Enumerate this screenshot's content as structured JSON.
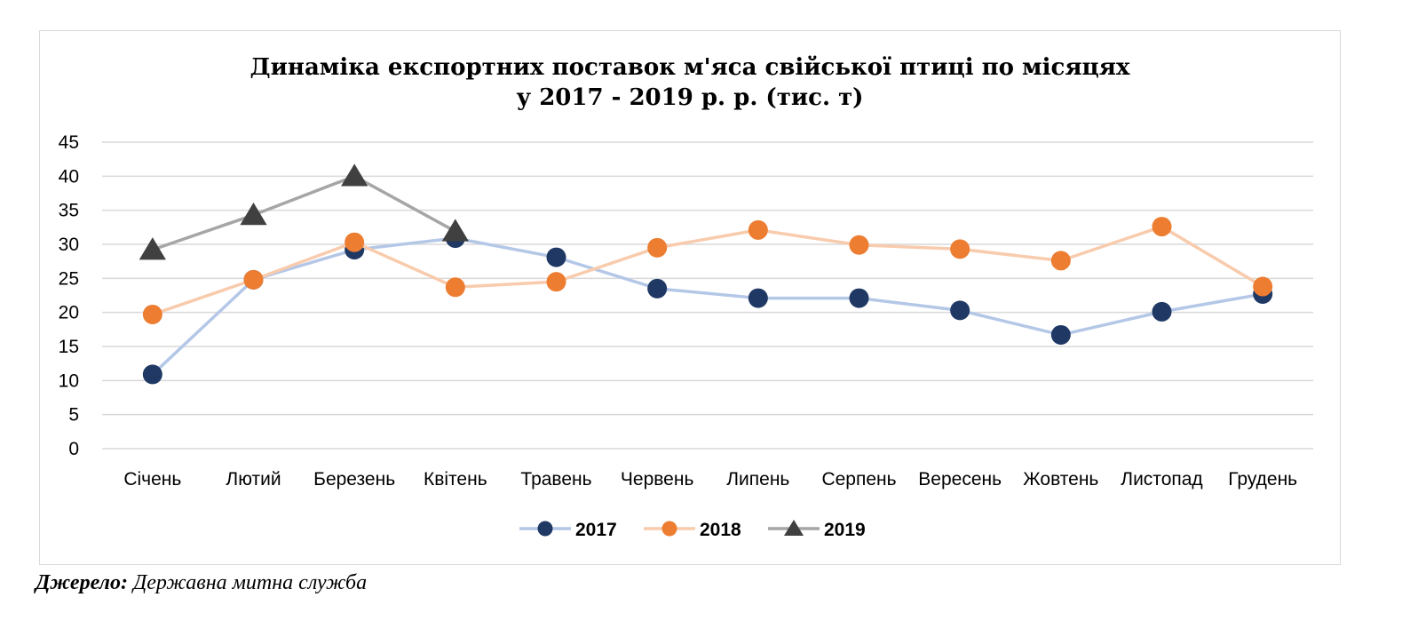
{
  "chart_data": {
    "type": "line",
    "title_line1": "Динаміка експортних поставок м'яса свійської птиці по місяцях",
    "title_line2": "у 2017 - 2019 р. р. (тис. т)",
    "categories": [
      "Січень",
      "Лютий",
      "Березень",
      "Квітень",
      "Травень",
      "Червень",
      "Липень",
      "Серпень",
      "Вересень",
      "Жовтень",
      "Листопад",
      "Грудень"
    ],
    "yticks": [
      "0",
      "5",
      "10",
      "15",
      "20",
      "25",
      "30",
      "35",
      "40",
      "45"
    ],
    "ylim": [
      0,
      45
    ],
    "grid": true,
    "legend_position": "bottom",
    "series": [
      {
        "name": "2017",
        "marker": "circle",
        "line_color": "#b4c7e7",
        "marker_color": "#1f3864",
        "values": [
          10.9,
          24.8,
          29.2,
          30.9,
          28.1,
          23.5,
          22.1,
          22.1,
          20.3,
          16.7,
          20.1,
          22.7
        ]
      },
      {
        "name": "2018",
        "marker": "circle",
        "line_color": "#f8cbad",
        "marker_color": "#ed7d31",
        "values": [
          19.7,
          24.8,
          30.3,
          23.7,
          24.5,
          29.5,
          32.1,
          29.9,
          29.3,
          27.6,
          32.6,
          23.8
        ]
      },
      {
        "name": "2019",
        "marker": "triangle",
        "line_color": "#a6a6a6",
        "marker_color": "#404040",
        "values": [
          29.2,
          34.3,
          40.0,
          31.9,
          null,
          null,
          null,
          null,
          null,
          null,
          null,
          null
        ]
      }
    ]
  },
  "source": {
    "label": "Джерело:",
    "text": "Державна митна служба"
  }
}
